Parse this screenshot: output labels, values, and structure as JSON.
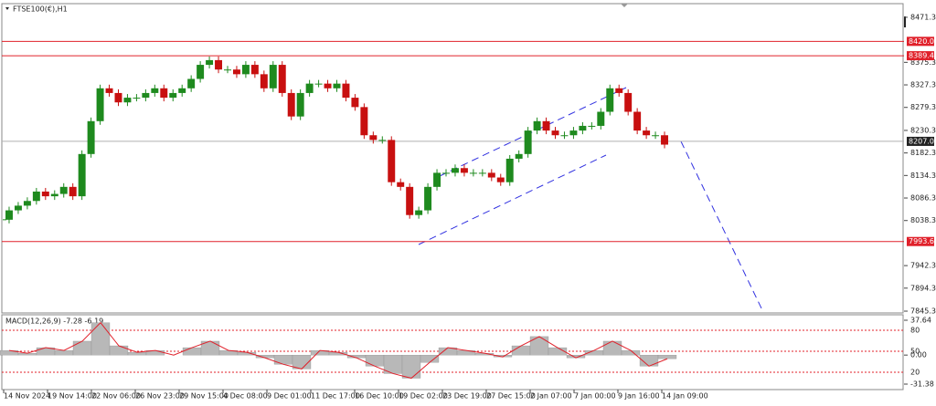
{
  "chart_data": {
    "type": "candlestick",
    "title": "FTSE100(€),H1",
    "up_color": "#1e8a1e",
    "down_color": "#c81010",
    "values": [
      8040,
      8060,
      8070,
      8080,
      8100,
      8090,
      8095,
      8110,
      8090,
      8180,
      8250,
      8320,
      8310,
      8290,
      8300,
      8300,
      8310,
      8320,
      8300,
      8310,
      8320,
      8340,
      8370,
      8380,
      8360,
      8360,
      8350,
      8370,
      8350,
      8320,
      8370,
      8310,
      8260,
      8310,
      8330,
      8330,
      8320,
      8330,
      8300,
      8280,
      8220,
      8210,
      8210,
      8120,
      8110,
      8050,
      8060,
      8110,
      8140,
      8140,
      8150,
      8140,
      8140,
      8140,
      8130,
      8120,
      8170,
      8180,
      8230,
      8250,
      8230,
      8220,
      8220,
      8230,
      8240,
      8240,
      8270,
      8320,
      8310,
      8270,
      8230,
      8220,
      8220,
      8200
    ],
    "ylim": [
      7843.4,
      8498.4
    ],
    "yticks": [
      8471.3,
      8375.3,
      8327.3,
      8279.3,
      8230.3,
      8182.3,
      8134.3,
      8086.3,
      8038.3,
      7942.3,
      7894.3,
      7845.3
    ],
    "x_tick_labels": [
      "14 Nov 2024",
      "19 Nov 14:00",
      "22 Nov 06:00",
      "26 Nov 23:00",
      "29 Nov 15:00",
      "4 Dec 08:00",
      "9 Dec 01:00",
      "11 Dec 17:00",
      "16 Dec 10:00",
      "19 Dec 02:00",
      "23 Dec 19:00",
      "27 Dec 15:00",
      "2 Jan 07:00",
      "7 Jan 00:00",
      "9 Jan 16:00",
      "14 Jan 09:00"
    ],
    "levels": [
      {
        "value": 8420.0,
        "label": "8420.0",
        "color": "#e0202a"
      },
      {
        "value": 8389.4,
        "label": "8389.4",
        "color": "#e0202a"
      },
      {
        "value": 8207.0,
        "label": "8207.0",
        "color": "#b0b0b0"
      },
      {
        "value": 7993.6,
        "label": "7993.6",
        "color": "#e0202a"
      }
    ],
    "macd": {
      "title": "MACD(12,26,9) -7.28 -6.19",
      "ylim": [
        -31.38,
        37.64
      ],
      "yticks": [
        37.64,
        {
          "value": 0,
          "label": "0.00"
        },
        -31.38
      ],
      "values": [
        5,
        2,
        8,
        5,
        15,
        35,
        10,
        3,
        5,
        0,
        8,
        15,
        5,
        3,
        -3,
        -10,
        -15,
        5,
        3,
        -3,
        -12,
        -20,
        -25,
        -8,
        8,
        5,
        2,
        -2,
        10,
        20,
        8,
        -3,
        5,
        15,
        5,
        -12,
        -4
      ],
      "level_lim": [
        0,
        100
      ],
      "level_ticks": [
        80,
        50,
        20
      ]
    }
  }
}
